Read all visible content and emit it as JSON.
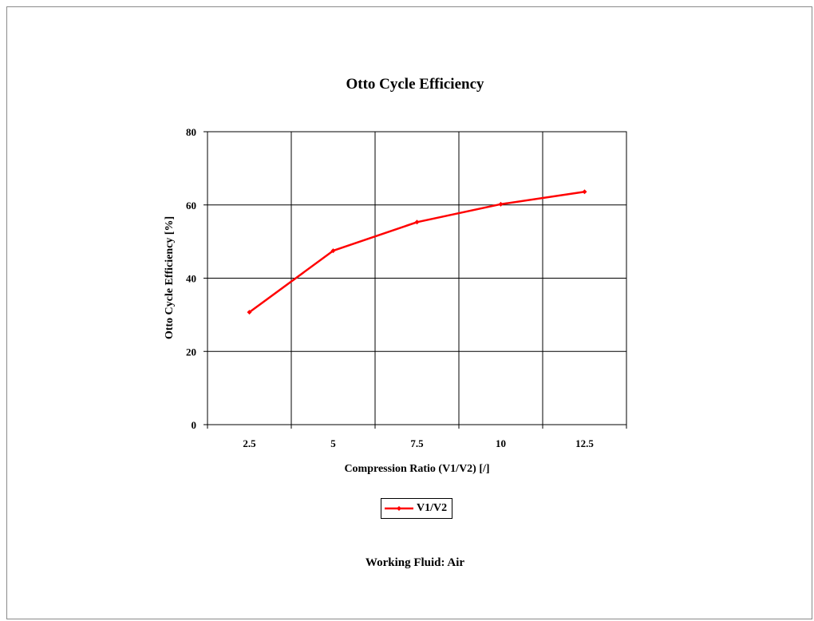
{
  "chart_data": {
    "type": "line",
    "title": "Otto Cycle Efficiency",
    "xlabel": "Compression Ratio (V1/V2) [/]",
    "ylabel": "Otto Cycle Efficiency [%]",
    "x": [
      2.5,
      5,
      7.5,
      10,
      12.5
    ],
    "x_tick_labels": [
      "2.5",
      "5",
      "7.5",
      "10",
      "12.5"
    ],
    "y_ticks": [
      0,
      20,
      40,
      60,
      80
    ],
    "ylim": [
      0,
      80
    ],
    "grid": true,
    "legend_position": "bottom",
    "series": [
      {
        "name": "V1/V2",
        "values": [
          30.7,
          47.5,
          55.3,
          60.2,
          63.6
        ],
        "color": "#ff0000"
      }
    ],
    "footnote": "Working Fluid:  Air"
  }
}
